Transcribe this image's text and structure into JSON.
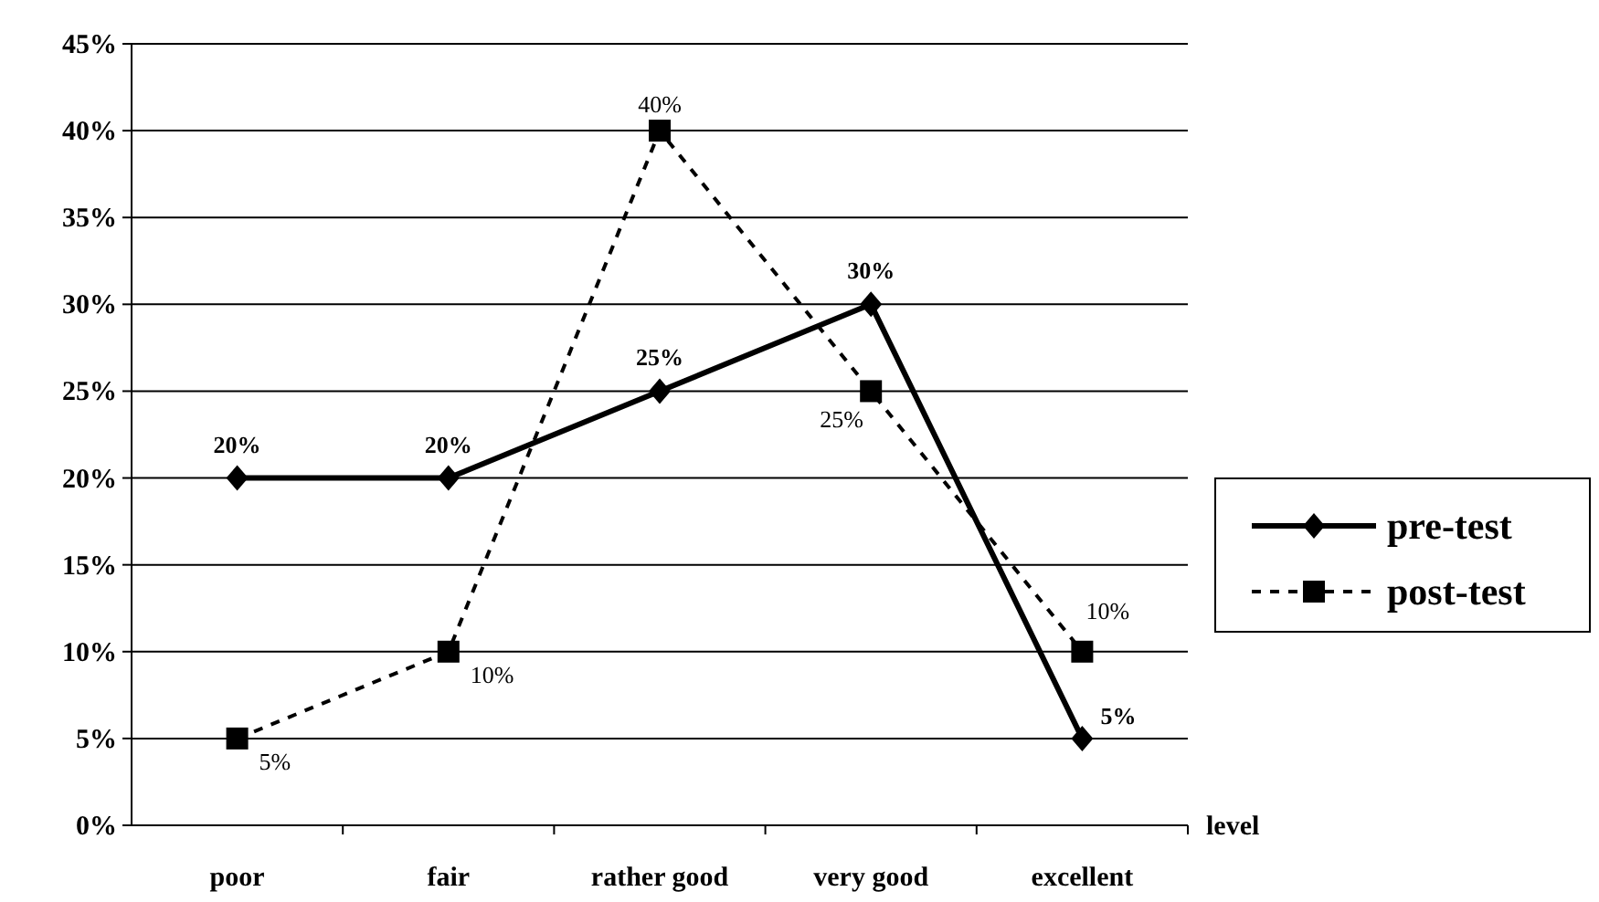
{
  "chart_data": {
    "type": "line",
    "xlabel": "level",
    "categories": [
      "poor",
      "fair",
      "rather good",
      "very good",
      "excellent"
    ],
    "ylim": [
      0,
      45
    ],
    "yticks": [
      {
        "value": 0,
        "label": "0%"
      },
      {
        "value": 5,
        "label": "5%"
      },
      {
        "value": 10,
        "label": "10%"
      },
      {
        "value": 15,
        "label": "15%"
      },
      {
        "value": 20,
        "label": "20%"
      },
      {
        "value": 25,
        "label": "25%"
      },
      {
        "value": 30,
        "label": "30%"
      },
      {
        "value": 35,
        "label": "35%"
      },
      {
        "value": 40,
        "label": "40%"
      },
      {
        "value": 45,
        "label": "45%"
      }
    ],
    "grid": "y",
    "legend": "right",
    "series": [
      {
        "name": "pre-test",
        "color": "#000000",
        "values": [
          20,
          20,
          25,
          30,
          5
        ],
        "value_labels": [
          "20%",
          "20%",
          "25%",
          "30%",
          "5%"
        ],
        "marker": "diamond",
        "line_style": "solid"
      },
      {
        "name": "post-test",
        "color": "#000000",
        "values": [
          5,
          10,
          40,
          25,
          10
        ],
        "value_labels": [
          "5%",
          "10%",
          "40%",
          "25%",
          "10%"
        ],
        "marker": "square",
        "line_style": "dashed"
      }
    ]
  }
}
